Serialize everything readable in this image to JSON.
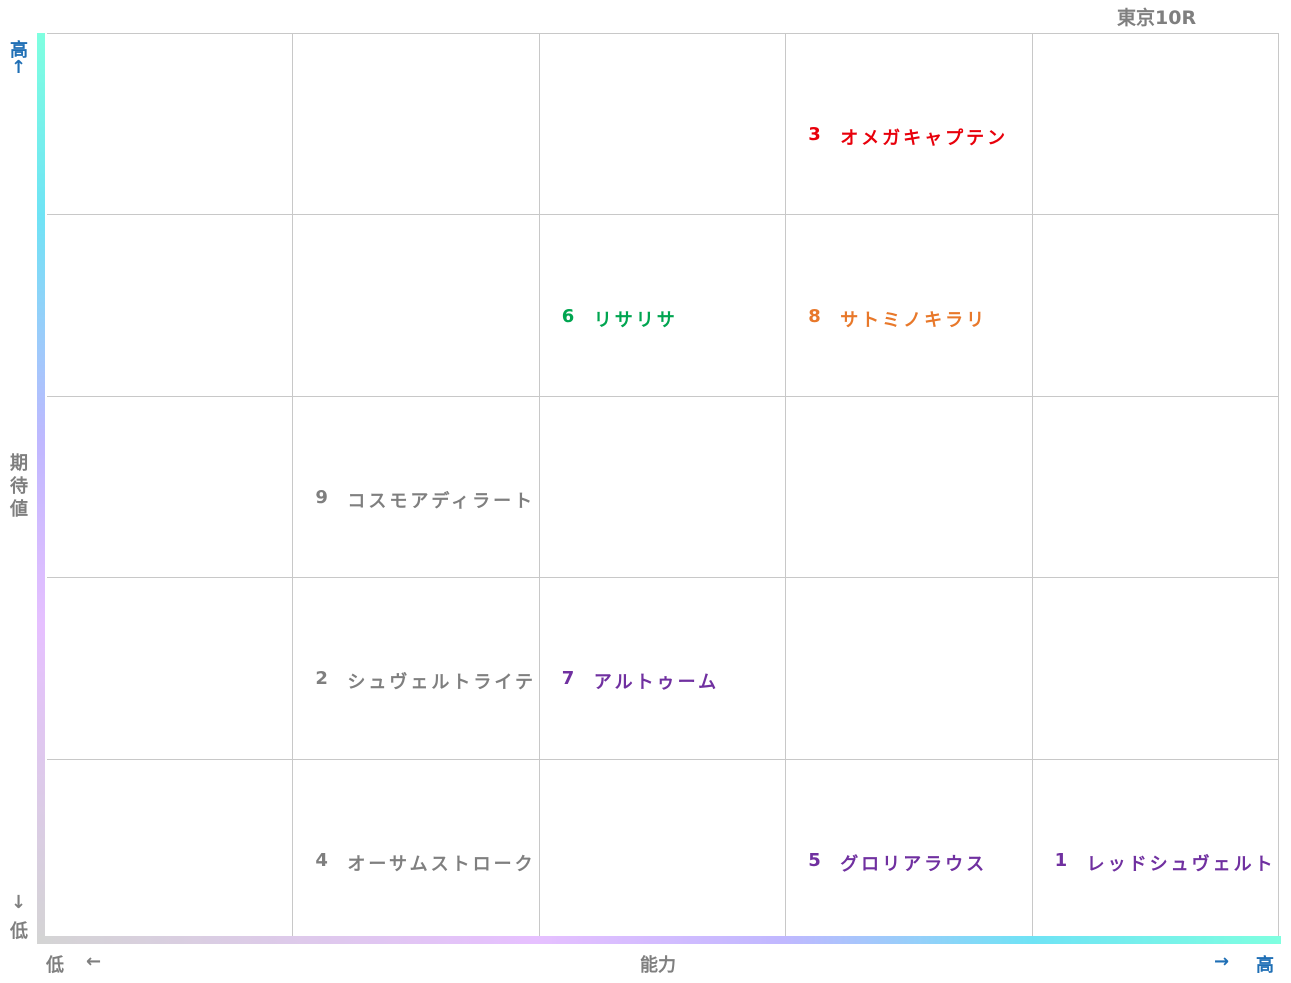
{
  "title": "東京10R",
  "y_axis": {
    "label": "期待値",
    "high": "高",
    "high_arrow": "↑",
    "low_arrow": "↓",
    "low": "低"
  },
  "x_axis": {
    "label": "能力",
    "low": "低",
    "low_arrow": "←",
    "high_arrow": "→",
    "high": "高"
  },
  "grid": {
    "rows": [
      [
        null,
        null,
        null,
        {
          "number": 3,
          "name": "オメガキャプテン",
          "color": "#e8000b"
        },
        null
      ],
      [
        null,
        null,
        {
          "number": 6,
          "name": "リサリサ",
          "color": "#00a550"
        },
        {
          "number": 8,
          "name": "サトミノキラリ",
          "color": "#e8782a"
        },
        null
      ],
      [
        null,
        {
          "number": 9,
          "name": "コスモアディラート",
          "color": "#7f7f7f"
        },
        null,
        null,
        null
      ],
      [
        null,
        {
          "number": 2,
          "name": "シュヴェルトライテ",
          "color": "#7f7f7f"
        },
        {
          "number": 7,
          "name": "アルトゥーム",
          "color": "#7030a0"
        },
        null,
        null
      ],
      [
        null,
        {
          "number": 4,
          "name": "オーサムストローク",
          "color": "#7f7f7f"
        },
        null,
        {
          "number": 5,
          "name": "グロリアラウス",
          "color": "#7030a0"
        },
        {
          "number": 1,
          "name": "レッドシュヴェルト",
          "color": "#7030a0"
        }
      ]
    ]
  }
}
